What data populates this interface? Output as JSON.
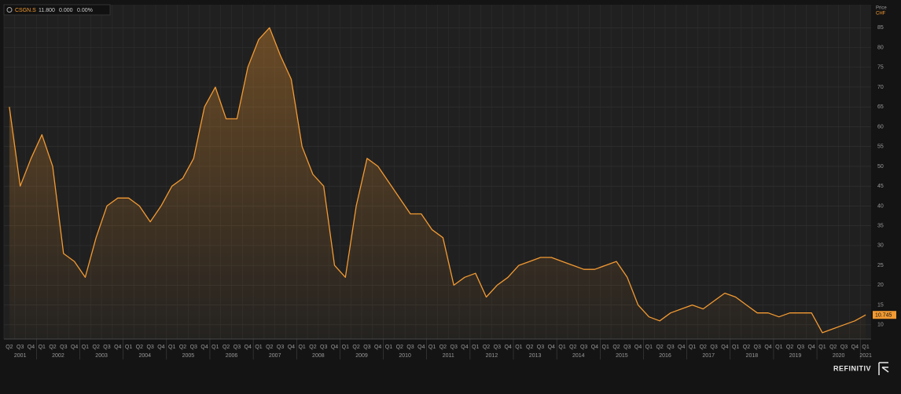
{
  "header": {
    "ric": "CSGN.S",
    "last": "11.800",
    "change": "0.000",
    "change_pct": "0.00%"
  },
  "axis_header": {
    "title": "Price",
    "unit": "CHF"
  },
  "price_label": "10.745",
  "brand": "REFINITIV",
  "chart_data": {
    "type": "line",
    "color": "#f39a32",
    "grid": true,
    "categories": [
      "Q2",
      "Q3",
      "Q4",
      "Q1",
      "Q2",
      "Q3",
      "Q4",
      "Q1",
      "Q2",
      "Q3",
      "Q4",
      "Q1",
      "Q2",
      "Q3",
      "Q4",
      "Q1",
      "Q2",
      "Q3",
      "Q4",
      "Q1",
      "Q2",
      "Q3",
      "Q4",
      "Q1",
      "Q2",
      "Q3",
      "Q4",
      "Q1",
      "Q2",
      "Q3",
      "Q4",
      "Q1",
      "Q2",
      "Q3",
      "Q4",
      "Q1",
      "Q2",
      "Q3",
      "Q4",
      "Q1",
      "Q2",
      "Q3",
      "Q4",
      "Q1",
      "Q2",
      "Q3",
      "Q4",
      "Q1",
      "Q2",
      "Q3",
      "Q4",
      "Q1",
      "Q2",
      "Q3",
      "Q4",
      "Q1",
      "Q2",
      "Q3",
      "Q4",
      "Q1",
      "Q2",
      "Q3",
      "Q4",
      "Q1",
      "Q2",
      "Q3",
      "Q4",
      "Q1",
      "Q2",
      "Q3",
      "Q4",
      "Q1",
      "Q2",
      "Q3",
      "Q4",
      "Q1",
      "Q2",
      "Q3",
      "Q4",
      "Q1"
    ],
    "years": [
      "2001",
      "2002",
      "2003",
      "2004",
      "2005",
      "2006",
      "2007",
      "2008",
      "2009",
      "2010",
      "2011",
      "2012",
      "2013",
      "2014",
      "2015",
      "2016",
      "2017",
      "2018",
      "2019",
      "2020",
      "2021"
    ],
    "values": [
      65,
      45,
      52,
      58,
      50,
      28,
      26,
      22,
      32,
      40,
      42,
      42,
      40,
      36,
      40,
      45,
      47,
      52,
      65,
      70,
      62,
      62,
      75,
      82,
      85,
      78,
      72,
      55,
      48,
      45,
      25,
      22,
      40,
      52,
      50,
      46,
      42,
      38,
      38,
      34,
      32,
      20,
      22,
      23,
      17,
      20,
      22,
      25,
      26,
      27,
      27,
      26,
      25,
      24,
      24,
      25,
      26,
      22,
      15,
      12,
      11,
      13,
      14,
      15,
      14,
      16,
      18,
      17,
      15,
      13,
      13,
      12,
      13,
      13,
      13,
      8,
      9,
      10,
      11,
      12.5
    ],
    "ylim": [
      6.4,
      90.8
    ],
    "yticks": [
      10,
      15,
      20,
      25,
      30,
      35,
      40,
      45,
      50,
      55,
      60,
      65,
      70,
      75,
      80,
      85
    ]
  }
}
